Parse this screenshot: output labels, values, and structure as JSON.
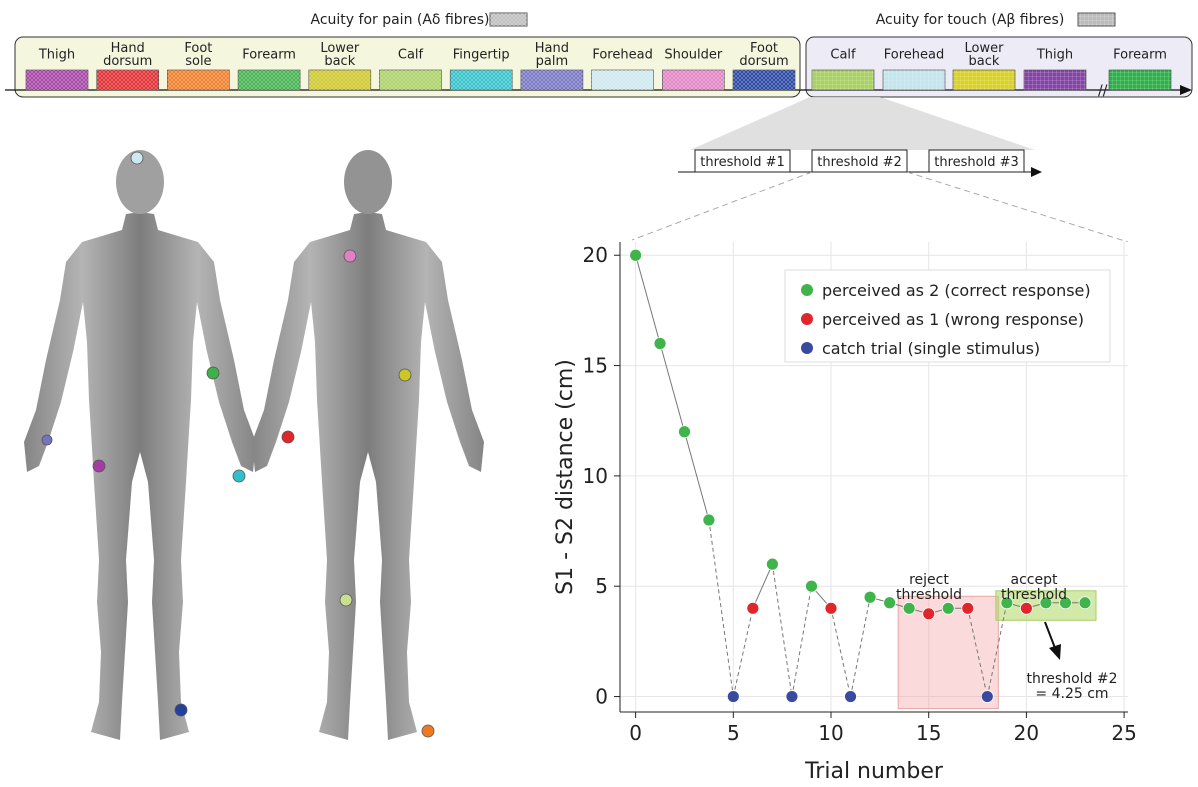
{
  "pain_panel": {
    "title": "Acuity for pain (Aδ fibres)",
    "sites": [
      {
        "label": "Thigh",
        "color": "#a23ea3"
      },
      {
        "label": "Hand\ndorsum",
        "color": "#e0262a"
      },
      {
        "label": "Foot\nsole",
        "color": "#ef7a24"
      },
      {
        "label": "Forearm",
        "color": "#3fb04a"
      },
      {
        "label": "Lower\nback",
        "color": "#cdc626"
      },
      {
        "label": "Calf",
        "color": "#a9d062"
      },
      {
        "label": "Fingertip",
        "color": "#2fc1c9"
      },
      {
        "label": "Hand\npalm",
        "color": "#7472c2"
      },
      {
        "label": "Forehead",
        "color": "#cde8ef"
      },
      {
        "label": "Shoulder",
        "color": "#e07fc3"
      },
      {
        "label": "Foot\ndorsum",
        "color": "#22409e"
      }
    ]
  },
  "touch_panel": {
    "title": "Acuity for touch (Aβ fibres)",
    "sites": [
      {
        "label": "Calf",
        "color": "#a9d062"
      },
      {
        "label": "Forehead",
        "color": "#c3e5ee"
      },
      {
        "label": "Lower\nback",
        "color": "#d9d224"
      },
      {
        "label": "Thigh",
        "color": "#8444a6"
      },
      {
        "label": "Forearm",
        "color": "#2fb14a"
      }
    ]
  },
  "thresholds": [
    "threshold #1",
    "threshold #2",
    "threshold #3"
  ],
  "chart_data": {
    "type": "line",
    "ylabel": "S1 - S2 distance (cm)",
    "xlabel": "Trial number",
    "x": [
      0,
      1.25,
      2.5,
      3.75,
      5,
      6,
      7,
      8,
      9,
      10,
      11,
      12,
      13,
      14,
      15,
      16,
      17,
      18,
      19,
      20,
      21,
      22,
      23
    ],
    "values": [
      20,
      16,
      12,
      8,
      0,
      4,
      6,
      0,
      5,
      4,
      0,
      4.5,
      4.25,
      4,
      3.75,
      4,
      4,
      0,
      4.25,
      4,
      4.25,
      4.25,
      4.25
    ],
    "colors": [
      "#3fb44a",
      "#3fb44a",
      "#3fb44a",
      "#3fb44a",
      "#3a4aa0",
      "#e0262a",
      "#3fb44a",
      "#3a4aa0",
      "#3fb44a",
      "#e0262a",
      "#3a4aa0",
      "#3fb44a",
      "#3fb44a",
      "#3fb44a",
      "#e0262a",
      "#3fb44a",
      "#e0262a",
      "#3a4aa0",
      "#3fb44a",
      "#e0262a",
      "#3fb44a",
      "#3fb44a",
      "#3fb44a"
    ],
    "legend": [
      {
        "name": "perceived as 2 (correct response)",
        "color": "#3fb44a"
      },
      {
        "name": "perceived as 1 (wrong response)",
        "color": "#e0262a"
      },
      {
        "name": "catch trial (single stimulus)",
        "color": "#3a4aa0"
      }
    ],
    "xlim": [
      -0.8,
      25.2
    ],
    "xticks": [
      0,
      5,
      10,
      15,
      20,
      25
    ],
    "ylim": [
      -0.7,
      20.6
    ],
    "yticks": [
      0,
      5,
      10,
      15,
      20
    ],
    "grid": true,
    "annotations": [
      {
        "lines": [
          "reject",
          "threshold"
        ]
      },
      {
        "lines": [
          "accept",
          "threshold"
        ]
      },
      {
        "lines": [
          "threshold #2",
          "= 4.25 cm"
        ]
      }
    ]
  }
}
